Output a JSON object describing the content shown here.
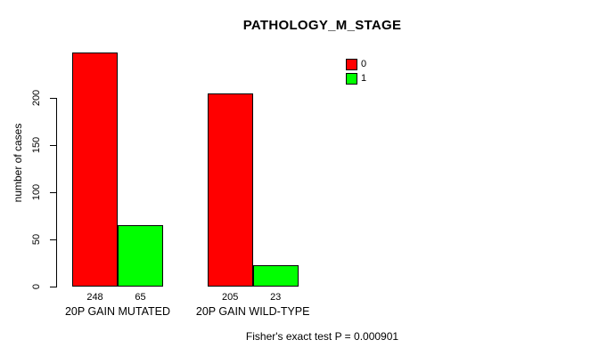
{
  "window": {
    "background": "#FFFFFF"
  },
  "chart_data": {
    "type": "bar",
    "title": "PATHOLOGY_M_STAGE",
    "xlabel": "",
    "ylabel": "number of cases",
    "categories": [
      "20P GAIN MUTATED",
      "20P GAIN WILD-TYPE"
    ],
    "series": [
      {
        "name": "0",
        "color": "#FF0000",
        "values": [
          248,
          205
        ]
      },
      {
        "name": "1",
        "color": "#00FF00",
        "values": [
          65,
          23
        ]
      }
    ],
    "bar_value_labels": [
      [
        "248",
        "65"
      ],
      [
        "205",
        "23"
      ]
    ],
    "y_ticks": [
      0,
      50,
      100,
      150,
      200
    ],
    "ylim": [
      0,
      250
    ],
    "grid": false,
    "legend_position": "top-right",
    "bar_border_color": "#000000",
    "footnote": "Fisher's exact test P = 0.000901"
  }
}
